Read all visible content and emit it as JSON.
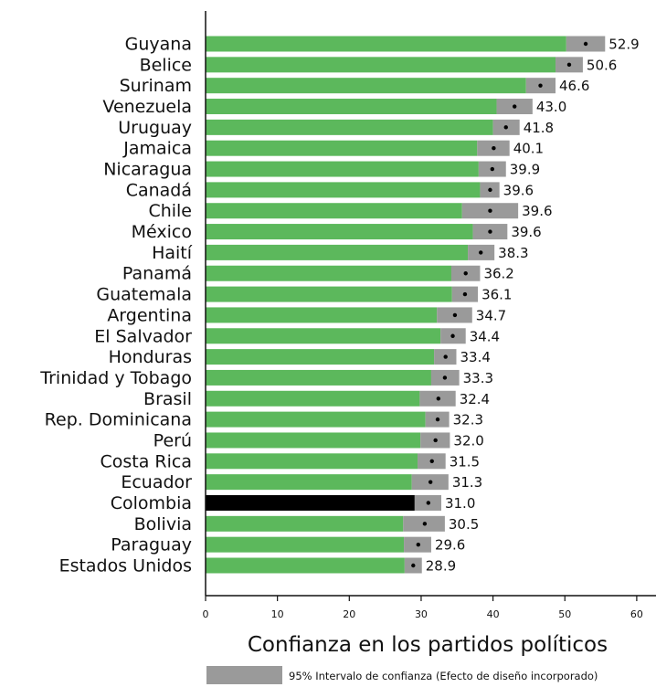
{
  "chart_data": {
    "type": "bar",
    "orientation": "horizontal",
    "title": "",
    "xlabel": "Confianza en los partidos políticos",
    "ylabel": "",
    "xlim": [
      0,
      63
    ],
    "xticks": [
      0,
      10,
      20,
      30,
      40,
      50,
      60
    ],
    "grid": false,
    "legend": {
      "placement": "bottom",
      "entries": [
        "95% Intervalo de confianza (Efecto de diseño incorporado)"
      ]
    },
    "colors": {
      "bar": "#5cb85c",
      "highlight_bar": "#000000",
      "ci_band": "#9a9a9a",
      "point": "#000000"
    },
    "highlight": "Colombia",
    "categories": [
      "Guyana",
      "Belice",
      "Surinam",
      "Venezuela",
      "Uruguay",
      "Jamaica",
      "Nicaragua",
      "Canadá",
      "Chile",
      "México",
      "Haití",
      "Panamá",
      "Guatemala",
      "Argentina",
      "El Salvador",
      "Honduras",
      "Trinidad y Tobago",
      "Brasil",
      "Rep. Dominicana",
      "Perú",
      "Costa Rica",
      "Ecuador",
      "Colombia",
      "Bolivia",
      "Paraguay",
      "Estados Unidos"
    ],
    "values": [
      52.9,
      50.6,
      46.6,
      43.0,
      41.8,
      40.1,
      39.9,
      39.6,
      39.6,
      39.6,
      38.3,
      36.2,
      36.1,
      34.7,
      34.4,
      33.4,
      33.3,
      32.4,
      32.3,
      32.0,
      31.5,
      31.3,
      31.0,
      30.5,
      29.6,
      28.9
    ],
    "value_labels": [
      "52.9",
      "50.6",
      "46.6",
      "43.0",
      "41.8",
      "40.1",
      "39.9",
      "39.6",
      "39.6",
      "39.6",
      "38.3",
      "36.2",
      "36.1",
      "34.7",
      "34.4",
      "33.4",
      "33.3",
      "32.4",
      "32.3",
      "32.0",
      "31.5",
      "31.3",
      "31.0",
      "30.5",
      "29.6",
      "28.9"
    ],
    "ci_lower": [
      50.2,
      48.7,
      44.6,
      40.5,
      40.0,
      37.8,
      38.0,
      38.2,
      35.7,
      37.2,
      36.5,
      34.2,
      34.3,
      32.2,
      32.7,
      31.8,
      31.4,
      29.8,
      30.6,
      29.9,
      29.5,
      28.7,
      29.1,
      27.5,
      27.6,
      27.7
    ],
    "ci_upper": [
      55.6,
      52.5,
      48.7,
      45.5,
      43.7,
      42.3,
      41.8,
      40.9,
      43.5,
      42.0,
      40.2,
      38.2,
      37.9,
      37.1,
      36.2,
      34.9,
      35.3,
      34.8,
      33.9,
      34.0,
      33.4,
      33.8,
      32.8,
      33.3,
      31.4,
      30.1
    ]
  }
}
